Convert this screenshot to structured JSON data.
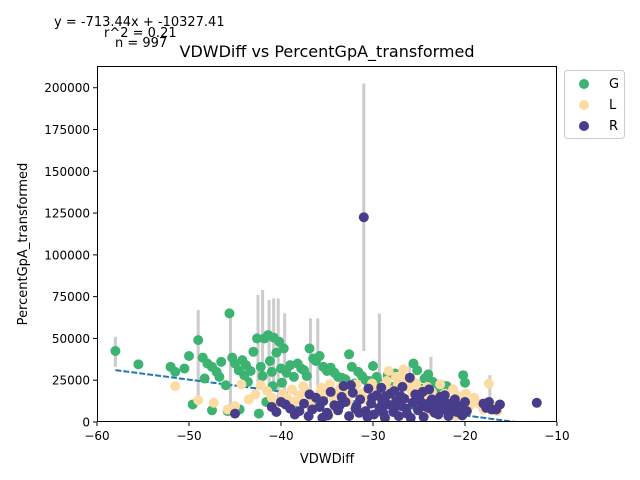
{
  "chart_data": {
    "type": "scatter",
    "title": "VDWDiff vs PercentGpA_transformed",
    "xlabel": "VDWDiff",
    "ylabel": "PercentGpA_transformed",
    "xlim": [
      -60,
      -10
    ],
    "ylim": [
      0,
      213000
    ],
    "x_ticks": [
      -60,
      -50,
      -40,
      -30,
      -20,
      -10
    ],
    "x_tick_labels": [
      "−60",
      "−50",
      "−40",
      "−30",
      "−20",
      "−10"
    ],
    "y_ticks": [
      0,
      25000,
      50000,
      75000,
      100000,
      125000,
      150000,
      175000,
      200000
    ],
    "y_tick_labels": [
      "0",
      "25000",
      "50000",
      "75000",
      "100000",
      "125000",
      "150000",
      "175000",
      "200000"
    ],
    "grid": false,
    "legend_position": "outside top-right",
    "annotations": [
      "y = -713.44x + -10327.41",
      "r^2 = 0.21",
      "n = 997"
    ],
    "regression_line": {
      "slope": -713.44,
      "intercept": -10327.41,
      "x_range": [
        -58,
        -13.5
      ],
      "color": "#1f77b4"
    },
    "error_bar_color": "#cccccc",
    "error_bars": [
      {
        "x": -58,
        "y": 42000,
        "err": 9000
      },
      {
        "x": -49,
        "y": 40000,
        "err": 27000
      },
      {
        "x": -45.5,
        "y": 35000,
        "err": 31000
      },
      {
        "x": -42.5,
        "y": 48000,
        "err": 28000
      },
      {
        "x": -42,
        "y": 50000,
        "err": 29000
      },
      {
        "x": -41.3,
        "y": 45000,
        "err": 28000
      },
      {
        "x": -40.8,
        "y": 46000,
        "err": 28000
      },
      {
        "x": -40.3,
        "y": 44000,
        "err": 30000
      },
      {
        "x": -39.6,
        "y": 40000,
        "err": 25000
      },
      {
        "x": -36.8,
        "y": 35000,
        "err": 27000
      },
      {
        "x": -36,
        "y": 38000,
        "err": 24000
      },
      {
        "x": -31,
        "y": 122500,
        "err": 80000
      },
      {
        "x": -29.3,
        "y": 40000,
        "err": 25000
      },
      {
        "x": -26,
        "y": 25000,
        "err": 10000
      },
      {
        "x": -23.7,
        "y": 25000,
        "err": 14000
      },
      {
        "x": -17.3,
        "y": 20000,
        "err": 8000
      }
    ],
    "series": [
      {
        "name": "G",
        "color": "#3cb371",
        "points": [
          [
            -58,
            42500
          ],
          [
            -55.5,
            34500
          ],
          [
            -52,
            33000
          ],
          [
            -51.5,
            30000
          ],
          [
            -50.5,
            32000
          ],
          [
            -50,
            39500
          ],
          [
            -49.6,
            10500
          ],
          [
            -49,
            49000
          ],
          [
            -48.5,
            38500
          ],
          [
            -48,
            35000
          ],
          [
            -47.5,
            33000
          ],
          [
            -47,
            30000
          ],
          [
            -46.5,
            36000
          ],
          [
            -46,
            22000
          ],
          [
            -45.6,
            65000
          ],
          [
            -45.3,
            38500
          ],
          [
            -45,
            35000
          ],
          [
            -44.6,
            31000
          ],
          [
            -44.2,
            37000
          ],
          [
            -44,
            28000
          ],
          [
            -43.8,
            34000
          ],
          [
            -43.3,
            30500
          ],
          [
            -43,
            42000
          ],
          [
            -42.6,
            50000
          ],
          [
            -42.2,
            33000
          ],
          [
            -42,
            27500
          ],
          [
            -41.8,
            50000
          ],
          [
            -41.4,
            52000
          ],
          [
            -41.2,
            36500
          ],
          [
            -41,
            30000
          ],
          [
            -40.8,
            50500
          ],
          [
            -40.5,
            41500
          ],
          [
            -40.2,
            48000
          ],
          [
            -40,
            32000
          ],
          [
            -39.7,
            44000
          ],
          [
            -39.4,
            29500
          ],
          [
            -39,
            34000
          ],
          [
            -38.6,
            27000
          ],
          [
            -38.2,
            35000
          ],
          [
            -37.8,
            32000
          ],
          [
            -37.5,
            31000
          ],
          [
            -37.2,
            27500
          ],
          [
            -36.9,
            44000
          ],
          [
            -36.5,
            38000
          ],
          [
            -36.2,
            36500
          ],
          [
            -35.8,
            39500
          ],
          [
            -35.4,
            33000
          ],
          [
            -35,
            30500
          ],
          [
            -34.6,
            32500
          ],
          [
            -34.2,
            29500
          ],
          [
            -33.8,
            27000
          ],
          [
            -33.4,
            26500
          ],
          [
            -33,
            25500
          ],
          [
            -32.6,
            40500
          ],
          [
            -32.3,
            33000
          ],
          [
            -32,
            23000
          ],
          [
            -31.6,
            30000
          ],
          [
            -31.2,
            27500
          ],
          [
            -30.8,
            25000
          ],
          [
            -30.4,
            24500
          ],
          [
            -30,
            33500
          ],
          [
            -29.6,
            27000
          ],
          [
            -29.2,
            23000
          ],
          [
            -28.8,
            22000
          ],
          [
            -28.4,
            28000
          ],
          [
            -28,
            21000
          ],
          [
            -27.6,
            29000
          ],
          [
            -27.2,
            24500
          ],
          [
            -26.8,
            22500
          ],
          [
            -26.4,
            26000
          ],
          [
            -26,
            22000
          ],
          [
            -25.6,
            35000
          ],
          [
            -25.2,
            31000
          ],
          [
            -24.8,
            20000
          ],
          [
            -24.4,
            26000
          ],
          [
            -24,
            28500
          ],
          [
            -23.5,
            24000
          ],
          [
            -23,
            20500
          ],
          [
            -22.5,
            22000
          ],
          [
            -22,
            21500
          ],
          [
            -20.2,
            28000
          ],
          [
            -20,
            23500
          ],
          [
            -47.5,
            7000
          ],
          [
            -45.8,
            6500
          ],
          [
            -44.5,
            7500
          ],
          [
            -42.4,
            5000
          ],
          [
            -41.6,
            12000
          ],
          [
            -38.7,
            8000
          ],
          [
            -36.3,
            10500
          ],
          [
            -48.3,
            26000
          ],
          [
            -46.7,
            27000
          ],
          [
            -43.6,
            24000
          ],
          [
            -40.9,
            21500
          ],
          [
            -39.9,
            23500
          ],
          [
            -34.8,
            18500
          ]
        ]
      },
      {
        "name": "L",
        "color": "#fddca3",
        "points": [
          [
            -51.5,
            21500
          ],
          [
            -49,
            13000
          ],
          [
            -47.3,
            11500
          ],
          [
            -45.8,
            7500
          ],
          [
            -45,
            9500
          ],
          [
            -44.3,
            22500
          ],
          [
            -43.5,
            13500
          ],
          [
            -42.8,
            16500
          ],
          [
            -42.2,
            22000
          ],
          [
            -41.5,
            18500
          ],
          [
            -41,
            14500
          ],
          [
            -40.6,
            11000
          ],
          [
            -39.8,
            17000
          ],
          [
            -39.3,
            14000
          ],
          [
            -38.8,
            19500
          ],
          [
            -38.4,
            12500
          ],
          [
            -38,
            16000
          ],
          [
            -37.6,
            21500
          ],
          [
            -37.1,
            18000
          ],
          [
            -36.6,
            13500
          ],
          [
            -36.1,
            15500
          ],
          [
            -35.6,
            20500
          ],
          [
            -35.2,
            17500
          ],
          [
            -34.7,
            22500
          ],
          [
            -34.3,
            14500
          ],
          [
            -33.9,
            18000
          ],
          [
            -33.5,
            21000
          ],
          [
            -33.1,
            16500
          ],
          [
            -32.7,
            12000
          ],
          [
            -32.2,
            19000
          ],
          [
            -31.8,
            22500
          ],
          [
            -31.3,
            17000
          ],
          [
            -30.9,
            14000
          ],
          [
            -30.5,
            20000
          ],
          [
            -30.1,
            23000
          ],
          [
            -29.7,
            18500
          ],
          [
            -29.3,
            15000
          ],
          [
            -28.9,
            21500
          ],
          [
            -28.5,
            24500
          ],
          [
            -28.1,
            19000
          ],
          [
            -27.7,
            16000
          ],
          [
            -27.3,
            22000
          ],
          [
            -26.9,
            28000
          ],
          [
            -26.5,
            25000
          ],
          [
            -26.1,
            20500
          ],
          [
            -25.7,
            17500
          ],
          [
            -25.3,
            23000
          ],
          [
            -24.9,
            19000
          ],
          [
            -24.5,
            15500
          ],
          [
            -24.1,
            21000
          ],
          [
            -23.6,
            18000
          ],
          [
            -23.1,
            14000
          ],
          [
            -22.7,
            22500
          ],
          [
            -22.2,
            17000
          ],
          [
            -21.8,
            13000
          ],
          [
            -21.3,
            19500
          ],
          [
            -20.8,
            15500
          ],
          [
            -20.4,
            12500
          ],
          [
            -19.9,
            17000
          ],
          [
            -19.5,
            9500
          ],
          [
            -19,
            14500
          ],
          [
            -18.5,
            11000
          ],
          [
            -18,
            7500
          ],
          [
            -17.4,
            23000
          ],
          [
            -17,
            10000
          ],
          [
            -16.5,
            6500
          ],
          [
            -28.3,
            30500
          ],
          [
            -27.5,
            27000
          ],
          [
            -26.7,
            31500
          ],
          [
            -25.9,
            26500
          ],
          [
            -36.8,
            9000
          ],
          [
            -34,
            7500
          ],
          [
            -31.7,
            6000
          ],
          [
            -29,
            5500
          ],
          [
            -24.3,
            4500
          ],
          [
            -21,
            3500
          ]
        ]
      },
      {
        "name": "R",
        "color": "#483d8b",
        "points": [
          [
            -45,
            5000
          ],
          [
            -41,
            9000
          ],
          [
            -40.5,
            6000
          ],
          [
            -40,
            12000
          ],
          [
            -39.5,
            10500
          ],
          [
            -39,
            8000
          ],
          [
            -38.5,
            4500
          ],
          [
            -38,
            6500
          ],
          [
            -37.5,
            11000
          ],
          [
            -37,
            3500
          ],
          [
            -36.6,
            7500
          ],
          [
            -36.2,
            14500
          ],
          [
            -35.8,
            9000
          ],
          [
            -35.4,
            12500
          ],
          [
            -35,
            5500
          ],
          [
            -34.6,
            18000
          ],
          [
            -34.2,
            10000
          ],
          [
            -33.8,
            7000
          ],
          [
            -33.4,
            15000
          ],
          [
            -33,
            12000
          ],
          [
            -32.6,
            3500
          ],
          [
            -32.2,
            17500
          ],
          [
            -31.8,
            9500
          ],
          [
            -31.4,
            13500
          ],
          [
            -31,
            122500
          ],
          [
            -30.8,
            6500
          ],
          [
            -30.5,
            20000
          ],
          [
            -30.2,
            11000
          ],
          [
            -29.9,
            4500
          ],
          [
            -29.6,
            16000
          ],
          [
            -29.3,
            8500
          ],
          [
            -29,
            13000
          ],
          [
            -28.7,
            2500
          ],
          [
            -28.4,
            10500
          ],
          [
            -28.1,
            17000
          ],
          [
            -27.8,
            6000
          ],
          [
            -27.5,
            12500
          ],
          [
            -27.2,
            3500
          ],
          [
            -26.9,
            9500
          ],
          [
            -26.6,
            14000
          ],
          [
            -26.3,
            5000
          ],
          [
            -26,
            26500
          ],
          [
            -25.7,
            11500
          ],
          [
            -25.4,
            16500
          ],
          [
            -25.1,
            7000
          ],
          [
            -24.8,
            12000
          ],
          [
            -24.5,
            3000
          ],
          [
            -24.2,
            9000
          ],
          [
            -23.9,
            19500
          ],
          [
            -23.6,
            13500
          ],
          [
            -23.3,
            5500
          ],
          [
            -23,
            10000
          ],
          [
            -22.7,
            15000
          ],
          [
            -22.4,
            7500
          ],
          [
            -22.1,
            11500
          ],
          [
            -21.8,
            3500
          ],
          [
            -21.5,
            8500
          ],
          [
            -21.2,
            12500
          ],
          [
            -20.9,
            6000
          ],
          [
            -20.6,
            9500
          ],
          [
            -20.3,
            4000
          ],
          [
            -20,
            12000
          ],
          [
            -18,
            11000
          ],
          [
            -17.7,
            8500
          ],
          [
            -17.4,
            12000
          ],
          [
            -17.1,
            7500
          ],
          [
            -16.6,
            7500
          ],
          [
            -16.2,
            10500
          ],
          [
            -12.2,
            11500
          ],
          [
            -33.2,
            21500
          ],
          [
            -31.9,
            8000
          ],
          [
            -30.1,
            14500
          ],
          [
            -28.9,
            5500
          ],
          [
            -27.7,
            18500
          ],
          [
            -26.4,
            8000
          ],
          [
            -25,
            14500
          ],
          [
            -23.8,
            8000
          ],
          [
            -22.9,
            4500
          ],
          [
            -21.6,
            10500
          ],
          [
            -36.9,
            16500
          ],
          [
            -34.9,
            4000
          ],
          [
            -32.4,
            22000
          ],
          [
            -30.6,
            3000
          ],
          [
            -29.1,
            20500
          ],
          [
            -27,
            15500
          ],
          [
            -25.9,
            2500
          ],
          [
            -24.6,
            18000
          ],
          [
            -22.2,
            16000
          ],
          [
            -21.1,
            13500
          ],
          [
            -19.8,
            6500
          ],
          [
            -35.5,
            2500
          ],
          [
            -33.6,
            10000
          ],
          [
            -31.5,
            5500
          ],
          [
            -28.6,
            15500
          ],
          [
            -27.4,
            9500
          ],
          [
            -26.8,
            21000
          ],
          [
            -24,
            11000
          ],
          [
            -22.5,
            13000
          ]
        ]
      }
    ]
  },
  "legend": {
    "items": [
      {
        "label": "G",
        "color": "#3cb371"
      },
      {
        "label": "L",
        "color": "#fddca3"
      },
      {
        "label": "R",
        "color": "#483d8b"
      }
    ]
  }
}
